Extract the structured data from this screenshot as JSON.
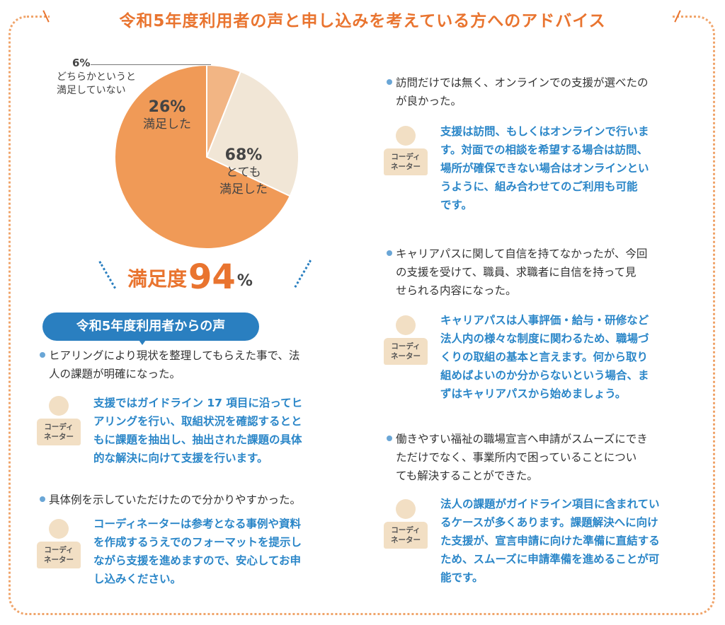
{
  "header": {
    "title": "令和5年度利用者の声と申し込みを考えている方へのアドバイス"
  },
  "chart_data": {
    "type": "pie",
    "title": "",
    "slices": [
      {
        "label": "どちらかというと満足していない",
        "value": 6,
        "color": "#f2b584"
      },
      {
        "label": "満足した",
        "value": 26,
        "color": "#f1e6d6"
      },
      {
        "label": "とても満足した",
        "value": 68,
        "color": "#f09a57"
      }
    ]
  },
  "pie_labels": {
    "s6_pct": "6%",
    "s6_line1": "どちらかというと",
    "s6_line2": "満足していない",
    "s26_pct": "26%",
    "s26_line1": "満足した",
    "s68_pct": "68%",
    "s68_line1": "とても",
    "s68_line2": "満足した"
  },
  "satisfaction": {
    "label": "満足度",
    "value": "94",
    "unit": "%"
  },
  "voices_title": "令和5年度利用者からの声",
  "coordinator_label": {
    "line1": "コーディ",
    "line2": "ネーター"
  },
  "left_items": [
    {
      "q": [
        "ヒアリングにより現状を整理してもらえた事で、法",
        "人の課題が明確になった。"
      ],
      "a": [
        "支援ではガイドライン 17 項目に沿ってヒ",
        "アリングを行い、取組状況を確認するとと",
        "もに課題を抽出し、抽出された課題の具体",
        "的な解決に向けて支援を行います。"
      ]
    },
    {
      "q": [
        "具体例を示していただけたので分かりやすかった。"
      ],
      "a": [
        "コーディネーターは参考となる事例や資料",
        "を作成するうえでのフォーマットを提示し",
        "ながら支援を進めますので、安心してお申",
        "し込みください。"
      ]
    }
  ],
  "right_items": [
    {
      "q": [
        "訪問だけでは無く、オンラインでの支援が選べたの",
        "が良かった。"
      ],
      "a": [
        "支援は訪問、もしくはオンラインで行いま",
        "す。対面での相談を希望する場合は訪問、",
        "場所が確保できない場合はオンラインとい",
        "うように、組み合わせてのご利用も可能",
        "です。"
      ]
    },
    {
      "q": [
        "キャリアパスに関して自信を持てなかったが、今回",
        "の支援を受けて、職員、求職者に自信を持って見",
        "せられる内容になった。"
      ],
      "a": [
        "キャリアパスは人事評価・給与・研修など",
        "法人内の様々な制度に関わるため、職場づ",
        "くりの取組の基本と言えます。何から取り",
        "組めばよいのか分からないという場合、ま",
        "ずはキャリアパスから始めましょう。"
      ]
    },
    {
      "q": [
        "働きやすい福祉の職場宣言へ申請がスムーズにでき",
        "ただけでなく、事業所内で困っていることについ",
        "ても解決することができた。"
      ],
      "a": [
        "法人の課題がガイドライン項目に含まれてい",
        "るケースが多くあります。課題解決へに向け",
        "た支援が、宣言申請に向けた準備に直結する",
        "ため、スムーズに申請準備を進めることが可",
        "能です。"
      ]
    }
  ]
}
